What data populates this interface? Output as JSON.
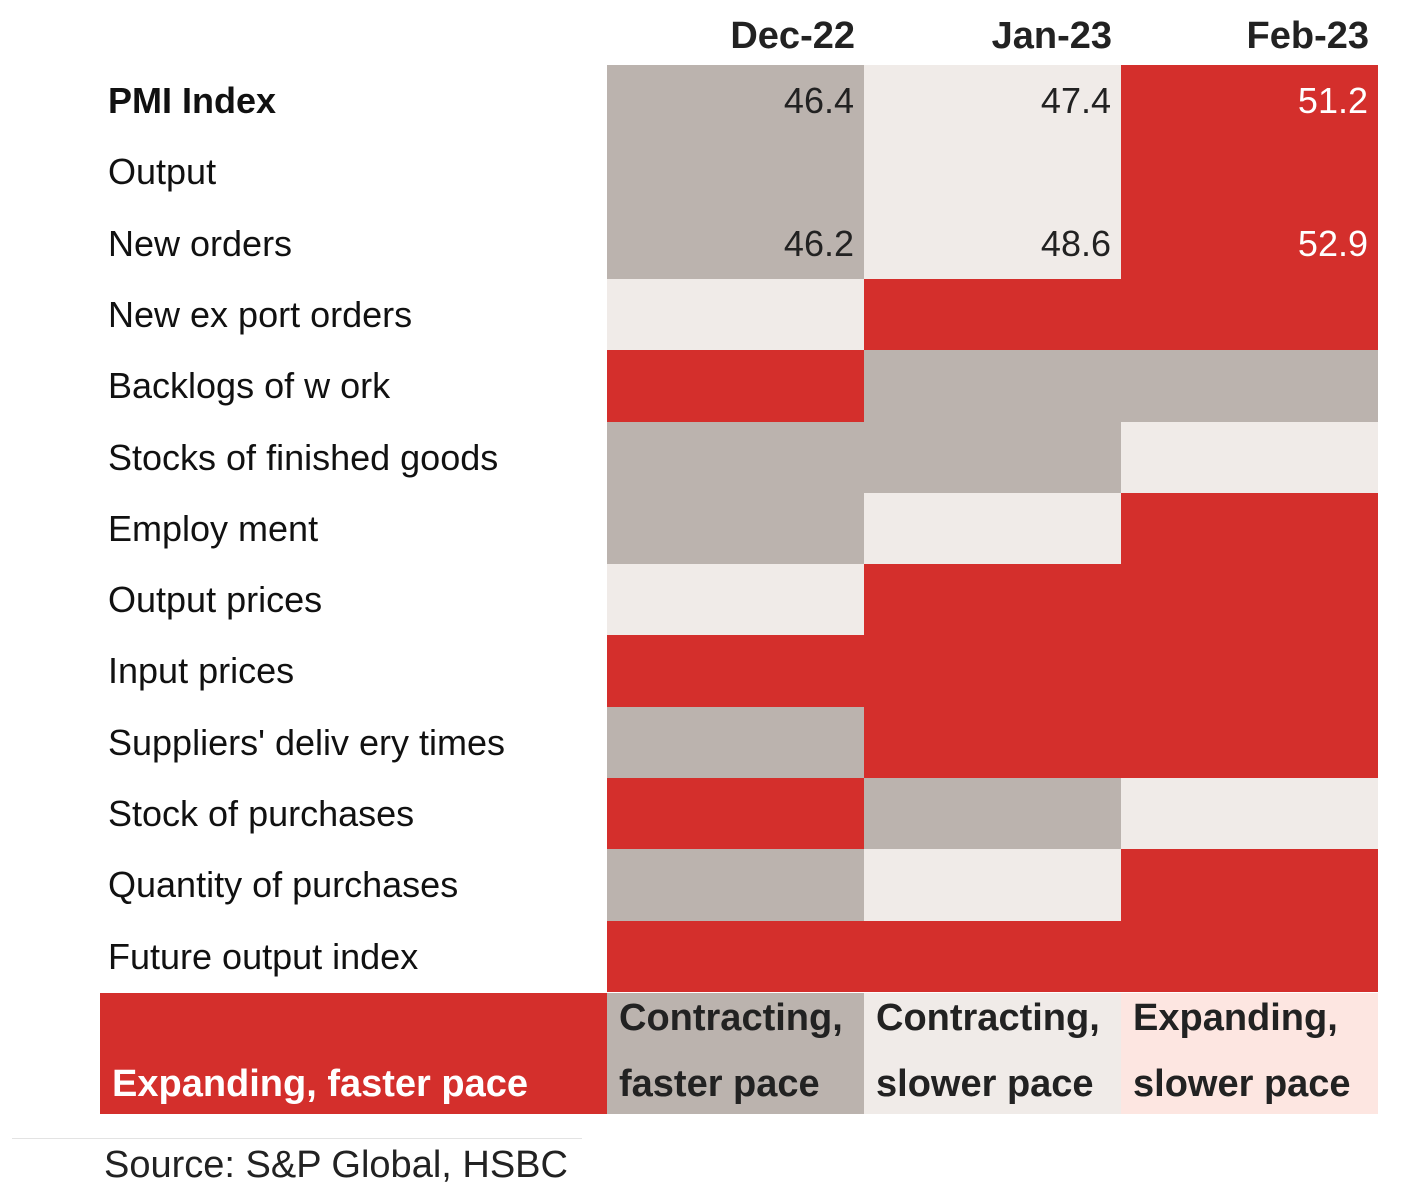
{
  "chart_data": {
    "type": "heatmap",
    "columns": [
      "Dec-22",
      "Jan-23",
      "Feb-23"
    ],
    "rows": [
      {
        "label": "PMI Index",
        "bold": true,
        "states": [
          "contract_fast",
          "contract_slow",
          "expand_fast"
        ],
        "values": [
          "46.4",
          "47.4",
          "51.2"
        ]
      },
      {
        "label": "Output",
        "bold": false,
        "states": [
          "contract_fast",
          "contract_slow",
          "expand_fast"
        ],
        "values": [
          "",
          "",
          ""
        ]
      },
      {
        "label": "New  orders",
        "bold": false,
        "states": [
          "contract_fast",
          "contract_slow",
          "expand_fast"
        ],
        "values": [
          "46.2",
          "48.6",
          "52.9"
        ]
      },
      {
        "label": "New  ex port orders",
        "bold": false,
        "states": [
          "contract_slow",
          "expand_fast",
          "expand_fast"
        ],
        "values": [
          "",
          "",
          ""
        ]
      },
      {
        "label": "Backlogs of w ork",
        "bold": false,
        "states": [
          "expand_fast",
          "contract_fast",
          "contract_fast"
        ],
        "values": [
          "",
          "",
          ""
        ]
      },
      {
        "label": "Stocks  of finished goods",
        "bold": false,
        "states": [
          "contract_fast",
          "contract_fast",
          "contract_slow"
        ],
        "values": [
          "",
          "",
          ""
        ]
      },
      {
        "label": "Employ ment",
        "bold": false,
        "states": [
          "contract_fast",
          "contract_slow",
          "expand_fast"
        ],
        "values": [
          "",
          "",
          ""
        ]
      },
      {
        "label": "Output prices",
        "bold": false,
        "states": [
          "contract_slow",
          "expand_fast",
          "expand_fast"
        ],
        "values": [
          "",
          "",
          ""
        ]
      },
      {
        "label": "Input prices",
        "bold": false,
        "states": [
          "expand_fast",
          "expand_fast",
          "expand_fast"
        ],
        "values": [
          "",
          "",
          ""
        ]
      },
      {
        "label": "Suppliers' deliv ery  times",
        "bold": false,
        "states": [
          "contract_fast",
          "expand_fast",
          "expand_fast"
        ],
        "values": [
          "",
          "",
          ""
        ]
      },
      {
        "label": "Stock  of purchases",
        "bold": false,
        "states": [
          "expand_fast",
          "contract_fast",
          "contract_slow"
        ],
        "values": [
          "",
          "",
          ""
        ]
      },
      {
        "label": "Quantity  of purchases",
        "bold": false,
        "states": [
          "contract_fast",
          "contract_slow",
          "expand_fast"
        ],
        "values": [
          "",
          "",
          ""
        ]
      },
      {
        "label": "Future output index",
        "bold": false,
        "states": [
          "expand_fast",
          "expand_fast",
          "expand_fast"
        ],
        "values": [
          "",
          "",
          ""
        ]
      }
    ],
    "legend": [
      {
        "key": "expand_fast",
        "lines": [
          "",
          "Expanding, faster pace"
        ]
      },
      {
        "key": "contract_fast",
        "lines": [
          "Contracting,",
          "faster pace"
        ]
      },
      {
        "key": "contract_slow",
        "lines": [
          "Contracting,",
          "slower pace"
        ]
      },
      {
        "key": "expand_slow",
        "lines": [
          "Expanding,",
          "slower pace"
        ]
      }
    ],
    "colors": {
      "expand_fast": "#d42f2c",
      "contract_fast": "#bbb3ae",
      "contract_slow": "#f0ebe8",
      "expand_slow": "#fde6e1"
    },
    "source": "Source: S&P Global, HSBC"
  }
}
